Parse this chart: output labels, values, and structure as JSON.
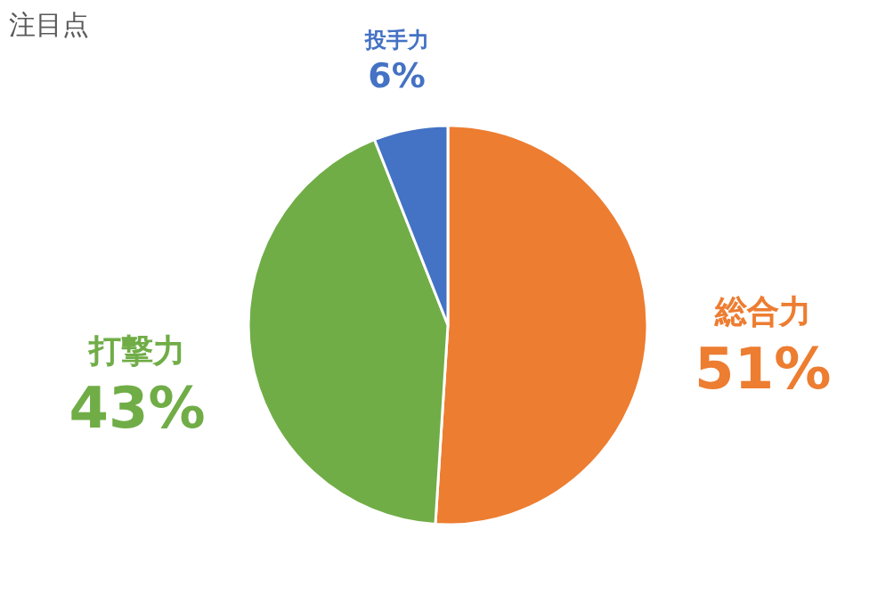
{
  "chart_data": {
    "type": "pie",
    "title": "注目点",
    "categories": [
      "総合力",
      "打撃力",
      "投手力"
    ],
    "values": [
      51,
      43,
      6
    ],
    "colors": [
      "#ed7d31",
      "#70ad47",
      "#4472c4"
    ],
    "value_labels": [
      "51%",
      "43%",
      "6%"
    ]
  }
}
